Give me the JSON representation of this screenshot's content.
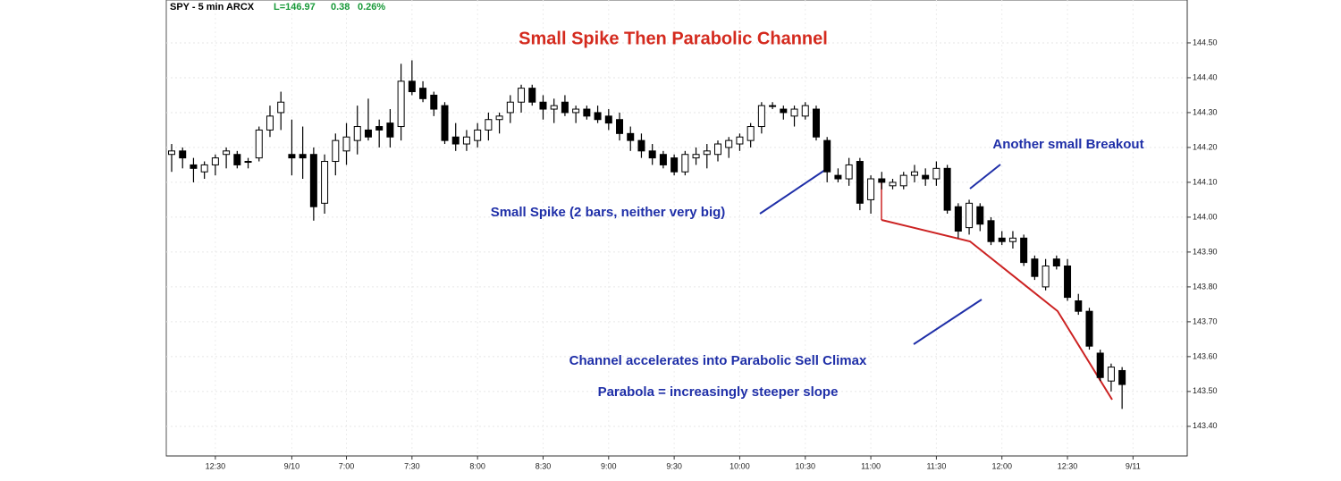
{
  "chart_data": {
    "type": "candlestick",
    "info": [
      "SPY - 5 min ARCX",
      "L=146.97",
      "0.38",
      "0.26%"
    ],
    "title": "Small Spike Then Parabolic Channel",
    "annotations": [
      "Another small Breakout",
      "Small Spike (2 bars, neither very big)",
      "Channel accelerates into Parabolic Sell Climax",
      "Parabola = increasingly steeper slope"
    ],
    "categories": [
      null,
      null,
      null,
      null,
      "12:30",
      null,
      null,
      null,
      null,
      null,
      null,
      "9/10",
      null,
      null,
      null,
      null,
      "7:00",
      null,
      null,
      null,
      null,
      null,
      "7:30",
      null,
      null,
      null,
      null,
      null,
      "8:00",
      null,
      null,
      null,
      null,
      null,
      "8:30",
      null,
      null,
      null,
      null,
      null,
      "9:00",
      null,
      null,
      null,
      null,
      null,
      "9:30",
      null,
      null,
      null,
      null,
      null,
      "10:00",
      null,
      null,
      null,
      null,
      null,
      "10:30",
      null,
      null,
      null,
      null,
      null,
      "11:00",
      null,
      null,
      null,
      null,
      null,
      "11:30",
      null,
      null,
      null,
      null,
      null,
      "12:00",
      null,
      null,
      null,
      null,
      null,
      "12:30",
      null,
      null,
      null,
      null,
      null,
      "9/11"
    ],
    "open": [
      144.18,
      144.19,
      144.15,
      144.13,
      144.15,
      144.18,
      144.18,
      144.16,
      144.17,
      144.25,
      144.3,
      144.18,
      144.18,
      144.18,
      144.04,
      144.16,
      144.19,
      144.22,
      144.25,
      144.26,
      144.27,
      144.26,
      144.39,
      144.37,
      144.35,
      144.32,
      144.23,
      144.21,
      144.22,
      144.25,
      144.28,
      144.3,
      144.33,
      144.37,
      144.33,
      144.31,
      144.33,
      144.3,
      144.31,
      144.3,
      144.29,
      144.28,
      144.24,
      144.22,
      144.19,
      144.18,
      144.17,
      144.13,
      144.17,
      144.18,
      144.18,
      144.2,
      144.21,
      144.22,
      144.26,
      144.32,
      144.31,
      144.29,
      144.29,
      144.31,
      144.22,
      144.12,
      144.11,
      144.16,
      144.05,
      144.11,
      144.09,
      144.09,
      144.12,
      144.12,
      144.11,
      144.14,
      144.03,
      143.97,
      144.03,
      143.99,
      143.94,
      143.93,
      143.94,
      143.88,
      143.8,
      143.88,
      143.86,
      143.76,
      143.73,
      143.61,
      143.53,
      143.56,
      null
    ],
    "high": [
      144.21,
      144.2,
      144.17,
      144.16,
      144.18,
      144.2,
      144.19,
      144.17,
      144.26,
      144.32,
      144.36,
      144.28,
      144.26,
      144.2,
      144.18,
      144.24,
      144.27,
      144.32,
      144.34,
      144.28,
      144.31,
      144.44,
      144.45,
      144.39,
      144.36,
      144.33,
      144.27,
      144.25,
      144.27,
      144.3,
      144.3,
      144.35,
      144.38,
      144.38,
      144.35,
      144.34,
      144.35,
      144.32,
      144.32,
      144.32,
      144.31,
      144.3,
      144.26,
      144.24,
      144.21,
      144.19,
      144.18,
      144.19,
      144.2,
      144.21,
      144.22,
      144.23,
      144.24,
      144.27,
      144.33,
      144.33,
      144.32,
      144.32,
      144.33,
      144.32,
      144.23,
      144.14,
      144.17,
      144.17,
      144.12,
      144.13,
      144.11,
      144.13,
      144.15,
      144.14,
      144.16,
      144.15,
      144.04,
      144.05,
      144.04,
      144.0,
      143.96,
      143.96,
      143.95,
      143.89,
      143.88,
      143.89,
      143.88,
      143.78,
      143.74,
      143.62,
      143.58,
      143.57,
      null
    ],
    "low": [
      144.13,
      144.14,
      144.1,
      144.11,
      144.12,
      144.14,
      144.14,
      144.14,
      144.16,
      144.23,
      144.25,
      144.12,
      144.11,
      143.99,
      144.01,
      144.12,
      144.15,
      144.18,
      144.22,
      144.2,
      144.2,
      144.22,
      144.35,
      144.33,
      144.29,
      144.21,
      144.19,
      144.19,
      144.2,
      144.22,
      144.24,
      144.27,
      144.3,
      144.32,
      144.28,
      144.27,
      144.29,
      144.27,
      144.28,
      144.27,
      144.25,
      144.22,
      144.19,
      144.17,
      144.15,
      144.14,
      144.12,
      144.12,
      144.15,
      144.14,
      144.16,
      144.17,
      144.19,
      144.2,
      144.24,
      144.31,
      144.28,
      144.26,
      144.28,
      144.22,
      144.1,
      144.1,
      144.09,
      144.02,
      144.01,
      144.08,
      144.08,
      144.08,
      144.1,
      144.09,
      144.09,
      144.01,
      143.94,
      143.95,
      143.96,
      143.92,
      143.92,
      143.91,
      143.86,
      143.82,
      143.79,
      143.85,
      143.76,
      143.72,
      143.62,
      143.53,
      143.5,
      143.45,
      null
    ],
    "close": [
      144.19,
      144.17,
      144.14,
      144.15,
      144.17,
      144.19,
      144.15,
      144.16,
      144.25,
      144.29,
      144.33,
      144.17,
      144.17,
      144.03,
      144.16,
      144.22,
      144.23,
      144.26,
      144.23,
      144.25,
      144.23,
      144.39,
      144.36,
      144.34,
      144.31,
      144.22,
      144.21,
      144.23,
      144.25,
      144.28,
      144.29,
      144.33,
      144.37,
      144.33,
      144.31,
      144.32,
      144.3,
      144.31,
      144.29,
      144.28,
      144.27,
      144.24,
      144.22,
      144.19,
      144.17,
      144.15,
      144.13,
      144.18,
      144.18,
      144.19,
      144.21,
      144.22,
      144.23,
      144.26,
      144.32,
      144.32,
      144.3,
      144.31,
      144.32,
      144.23,
      144.13,
      144.11,
      144.15,
      144.04,
      144.11,
      144.1,
      144.1,
      144.12,
      144.13,
      144.11,
      144.14,
      144.02,
      143.96,
      144.04,
      143.98,
      143.93,
      143.93,
      143.94,
      143.87,
      143.83,
      143.86,
      143.86,
      143.77,
      143.73,
      143.63,
      143.54,
      143.57,
      143.52,
      null
    ],
    "ylim": [
      143.315,
      144.623
    ],
    "yticks": [
      {
        "value": 143.4,
        "label": "143.40"
      },
      {
        "value": 143.5,
        "label": "143.50"
      },
      {
        "value": 143.6,
        "label": "143.60"
      },
      {
        "value": 143.7,
        "label": "143.70"
      },
      {
        "value": 143.8,
        "label": "143.80"
      },
      {
        "value": 143.9,
        "label": "143.90"
      },
      {
        "value": 144.0,
        "label": "144.00"
      },
      {
        "value": 144.1,
        "label": "144.10"
      },
      {
        "value": 144.2,
        "label": "144.20"
      },
      {
        "value": 144.3,
        "label": "144.30"
      },
      {
        "value": 144.4,
        "label": "144.40"
      },
      {
        "value": 144.5,
        "label": "144.50"
      }
    ],
    "up_color": "#ffffff",
    "down_color": "#000000",
    "grid": true
  }
}
